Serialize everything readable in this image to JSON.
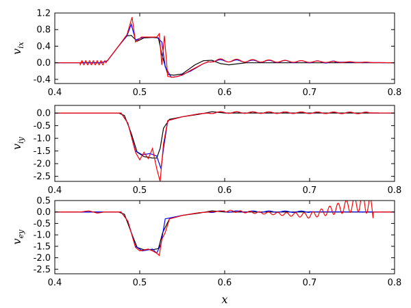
{
  "chart_data": [
    {
      "type": "line",
      "ylabel": "v",
      "ylabel_sub": "ix",
      "xlim": [
        0.4,
        0.8
      ],
      "ylim": [
        -0.5,
        1.2
      ],
      "xticks": [
        "0.4",
        "0.5",
        "0.6",
        "0.7",
        "0.8"
      ],
      "yticks": [
        "1.2",
        "0.8",
        "0.4",
        "0.0",
        "-0.4"
      ],
      "ytick_values": [
        1.2,
        0.8,
        0.4,
        0.0,
        -0.4
      ],
      "grid": false,
      "colors": [
        "#000000",
        "#0000ff",
        "#ff0000"
      ],
      "series": [
        {
          "color": "#000000",
          "points": [
            [
              0.4,
              0
            ],
            [
              0.455,
              0
            ],
            [
              0.462,
              0.05
            ],
            [
              0.475,
              0.4
            ],
            [
              0.485,
              0.65
            ],
            [
              0.49,
              0.66
            ],
            [
              0.497,
              0.52
            ],
            [
              0.505,
              0.6
            ],
            [
              0.515,
              0.61
            ],
            [
              0.522,
              0.6
            ],
            [
              0.526,
              0.2
            ],
            [
              0.533,
              -0.28
            ],
            [
              0.54,
              -0.3
            ],
            [
              0.55,
              -0.27
            ],
            [
              0.565,
              -0.05
            ],
            [
              0.575,
              0.05
            ],
            [
              0.585,
              0.06
            ],
            [
              0.595,
              -0.02
            ],
            [
              0.605,
              -0.05
            ],
            [
              0.625,
              0.0
            ],
            [
              0.8,
              0.0
            ]
          ]
        },
        {
          "color": "#0000ff",
          "points": [
            [
              0.4,
              0
            ],
            [
              0.455,
              0
            ],
            [
              0.462,
              0.05
            ],
            [
              0.475,
              0.4
            ],
            [
              0.485,
              0.65
            ],
            [
              0.49,
              0.93
            ],
            [
              0.495,
              0.55
            ],
            [
              0.505,
              0.62
            ],
            [
              0.52,
              0.62
            ],
            [
              0.526,
              0.5
            ],
            [
              0.53,
              -0.1
            ],
            [
              0.537,
              -0.35
            ],
            [
              0.545,
              -0.33
            ],
            [
              0.56,
              -0.2
            ],
            [
              0.575,
              -0.02
            ],
            [
              0.585,
              0.05
            ],
            [
              0.8,
              0.0
            ]
          ]
        },
        {
          "color": "#ff0000",
          "points": [
            [
              0.4,
              0
            ],
            [
              0.438,
              0.0
            ],
            [
              0.46,
              0.0
            ],
            [
              0.475,
              0.4
            ],
            [
              0.485,
              0.68
            ],
            [
              0.491,
              1.1
            ],
            [
              0.495,
              0.5
            ],
            [
              0.502,
              0.62
            ],
            [
              0.52,
              0.62
            ],
            [
              0.523,
              0.7
            ],
            [
              0.526,
              -0.05
            ],
            [
              0.529,
              0.65
            ],
            [
              0.533,
              -0.33
            ],
            [
              0.54,
              -0.35
            ],
            [
              0.55,
              -0.3
            ],
            [
              0.56,
              -0.18
            ],
            [
              0.575,
              -0.02
            ],
            [
              0.585,
              0.06
            ],
            [
              0.8,
              0.0
            ]
          ]
        }
      ]
    },
    {
      "type": "line",
      "ylabel": "v",
      "ylabel_sub": "iy",
      "xlim": [
        0.4,
        0.8
      ],
      "ylim": [
        -2.7,
        0.3
      ],
      "xticks": [
        "0.4",
        "0.5",
        "0.6",
        "0.7",
        "0.8"
      ],
      "yticks": [
        "0.0",
        "-0.5",
        "-1.0",
        "-1.5",
        "-2.0",
        "-2.5"
      ],
      "ytick_values": [
        0.0,
        -0.5,
        -1.0,
        -1.5,
        -2.0,
        -2.5
      ],
      "grid": false,
      "colors": [
        "#000000",
        "#0000ff",
        "#ff0000"
      ],
      "series": [
        {
          "color": "#000000",
          "points": [
            [
              0.4,
              0
            ],
            [
              0.475,
              0
            ],
            [
              0.482,
              -0.1
            ],
            [
              0.49,
              -0.8
            ],
            [
              0.497,
              -1.55
            ],
            [
              0.505,
              -1.72
            ],
            [
              0.515,
              -1.78
            ],
            [
              0.52,
              -1.78
            ],
            [
              0.524,
              -1.4
            ],
            [
              0.528,
              -0.6
            ],
            [
              0.535,
              -0.25
            ],
            [
              0.55,
              -0.15
            ],
            [
              0.57,
              -0.05
            ],
            [
              0.585,
              0.05
            ],
            [
              0.6,
              0.0
            ],
            [
              0.8,
              0.0
            ]
          ]
        },
        {
          "color": "#0000ff",
          "points": [
            [
              0.4,
              0
            ],
            [
              0.478,
              0
            ],
            [
              0.486,
              -0.4
            ],
            [
              0.495,
              -1.5
            ],
            [
              0.503,
              -1.65
            ],
            [
              0.512,
              -1.6
            ],
            [
              0.52,
              -1.7
            ],
            [
              0.525,
              -2.2
            ],
            [
              0.528,
              -1.4
            ],
            [
              0.533,
              -0.3
            ],
            [
              0.55,
              -0.15
            ],
            [
              0.57,
              -0.03
            ],
            [
              0.59,
              0.02
            ],
            [
              0.8,
              0.0
            ]
          ]
        },
        {
          "color": "#ff0000",
          "points": [
            [
              0.4,
              0
            ],
            [
              0.478,
              0
            ],
            [
              0.486,
              -0.4
            ],
            [
              0.495,
              -1.55
            ],
            [
              0.5,
              -1.85
            ],
            [
              0.505,
              -1.55
            ],
            [
              0.51,
              -1.8
            ],
            [
              0.515,
              -1.4
            ],
            [
              0.52,
              -2.2
            ],
            [
              0.524,
              -2.7
            ],
            [
              0.528,
              -1.2
            ],
            [
              0.533,
              -0.3
            ],
            [
              0.55,
              -0.15
            ],
            [
              0.57,
              -0.03
            ],
            [
              0.59,
              0.02
            ],
            [
              0.8,
              0.0
            ]
          ]
        }
      ]
    },
    {
      "type": "line",
      "ylabel": "v",
      "ylabel_sub": "ey",
      "xlim": [
        0.4,
        0.8
      ],
      "ylim": [
        -2.7,
        0.5
      ],
      "xticks": [
        "0.4",
        "0.5",
        "0.6",
        "0.7",
        "0.8"
      ],
      "xlabel": "x",
      "yticks": [
        "0.5",
        "0.0",
        "-0.5",
        "-1.0",
        "-1.5",
        "-2.0",
        "-2.5"
      ],
      "ytick_values": [
        0.5,
        0.0,
        -0.5,
        -1.0,
        -1.5,
        -2.0,
        -2.5
      ],
      "grid": false,
      "colors": [
        "#000000",
        "#0000ff",
        "#ff0000"
      ],
      "series": [
        {
          "color": "#000000",
          "points": [
            [
              0.4,
              0
            ],
            [
              0.475,
              0
            ],
            [
              0.482,
              -0.1
            ],
            [
              0.49,
              -0.9
            ],
            [
              0.497,
              -1.55
            ],
            [
              0.505,
              -1.65
            ],
            [
              0.515,
              -1.65
            ],
            [
              0.522,
              -1.6
            ],
            [
              0.527,
              -0.9
            ],
            [
              0.535,
              -0.3
            ],
            [
              0.55,
              -0.15
            ],
            [
              0.57,
              -0.05
            ],
            [
              0.585,
              0.05
            ],
            [
              0.6,
              0.0
            ],
            [
              0.8,
              0.0
            ]
          ]
        },
        {
          "color": "#0000ff",
          "points": [
            [
              0.4,
              0
            ],
            [
              0.478,
              0
            ],
            [
              0.486,
              -0.4
            ],
            [
              0.495,
              -1.5
            ],
            [
              0.503,
              -1.7
            ],
            [
              0.515,
              -1.62
            ],
            [
              0.52,
              -1.8
            ],
            [
              0.525,
              -1.4
            ],
            [
              0.53,
              -0.3
            ],
            [
              0.55,
              -0.15
            ],
            [
              0.57,
              -0.03
            ],
            [
              0.59,
              0.02
            ],
            [
              0.8,
              0.0
            ]
          ]
        },
        {
          "color": "#ff0000",
          "points": [
            [
              0.4,
              0
            ],
            [
              0.43,
              0
            ],
            [
              0.44,
              0.05
            ],
            [
              0.45,
              -0.05
            ],
            [
              0.458,
              0.0
            ],
            [
              0.478,
              0
            ],
            [
              0.486,
              -0.4
            ],
            [
              0.495,
              -1.55
            ],
            [
              0.5,
              -1.7
            ],
            [
              0.51,
              -1.62
            ],
            [
              0.515,
              -1.7
            ],
            [
              0.52,
              -1.8
            ],
            [
              0.523,
              -1.9
            ],
            [
              0.526,
              -1.2
            ],
            [
              0.53,
              -0.9
            ],
            [
              0.535,
              -0.3
            ],
            [
              0.55,
              -0.15
            ],
            [
              0.57,
              -0.03
            ],
            [
              0.6,
              0.05
            ],
            [
              0.7,
              -0.15
            ],
            [
              0.75,
              0.3
            ],
            [
              0.765,
              0.45
            ],
            [
              0.775,
              0.0
            ],
            [
              0.8,
              0.0
            ]
          ]
        }
      ]
    }
  ]
}
